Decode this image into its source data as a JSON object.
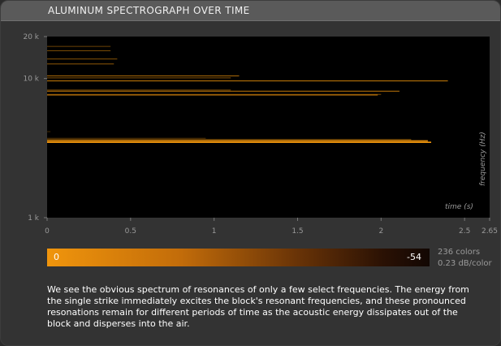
{
  "title": "ALUMINUM SPECTROGRAPH OVER TIME",
  "chart_data": {
    "type": "heatmap",
    "title": "ALUMINUM SPECTROGRAPH OVER TIME",
    "xlabel": "time (s)",
    "ylabel": "frequency (Hz)",
    "x_scale": "linear",
    "y_scale": "log",
    "xlim": [
      0,
      2.65
    ],
    "ylim": [
      1000,
      20000
    ],
    "x_ticks": [
      {
        "value": 0,
        "label": "0"
      },
      {
        "value": 0.5,
        "label": "0.5"
      },
      {
        "value": 1,
        "label": "1"
      },
      {
        "value": 1.5,
        "label": "1.5"
      },
      {
        "value": 2,
        "label": "2"
      },
      {
        "value": 2.5,
        "label": "2.5"
      },
      {
        "value": 2.65,
        "label": "2.65"
      }
    ],
    "y_ticks": [
      {
        "value": 1000,
        "label": "1 k"
      },
      {
        "value": 10000,
        "label": "10 k"
      },
      {
        "value": 20000,
        "label": "20 k"
      }
    ],
    "background_color": "#000000",
    "resonances": [
      {
        "frequency": 3480,
        "end_time": 2.3,
        "intensity": 1.0
      },
      {
        "frequency": 3560,
        "end_time": 2.28,
        "intensity": 0.9
      },
      {
        "frequency": 3640,
        "end_time": 2.18,
        "intensity": 0.6
      },
      {
        "frequency": 3720,
        "end_time": 0.95,
        "intensity": 0.35
      },
      {
        "frequency": 7600,
        "end_time": 1.98,
        "intensity": 0.8
      },
      {
        "frequency": 7680,
        "end_time": 2.0,
        "intensity": 0.5
      },
      {
        "frequency": 8100,
        "end_time": 2.11,
        "intensity": 0.8
      },
      {
        "frequency": 8250,
        "end_time": 1.1,
        "intensity": 0.5
      },
      {
        "frequency": 9600,
        "end_time": 2.4,
        "intensity": 0.85
      },
      {
        "frequency": 10100,
        "end_time": 1.1,
        "intensity": 0.55
      },
      {
        "frequency": 10450,
        "end_time": 1.15,
        "intensity": 0.75
      },
      {
        "frequency": 12700,
        "end_time": 0.4,
        "intensity": 0.6
      },
      {
        "frequency": 13800,
        "end_time": 0.42,
        "intensity": 0.55
      },
      {
        "frequency": 15800,
        "end_time": 0.38,
        "intensity": 0.5
      },
      {
        "frequency": 17000,
        "end_time": 0.38,
        "intensity": 0.45
      },
      {
        "frequency": 4150,
        "end_time": 0.02,
        "intensity": 0.3
      }
    ],
    "colorbar": {
      "min_label": "0",
      "max_label": "-54",
      "colors_label": "236 colors",
      "resolution_label": "0.23 dB/color"
    }
  },
  "colors": {
    "background": "#333333",
    "title_bar": "#5a5a5a",
    "plot_background": "#000000",
    "accent_orange": "#f0950c"
  },
  "caption": "We see the obvious spectrum of resonances of only a few select frequencies. The energy from the single strike immediately excites the block's resonant frequencies, and these pronounced resonations remain for different periods of time as the acoustic energy dissipates out of the block and disperses into the air."
}
